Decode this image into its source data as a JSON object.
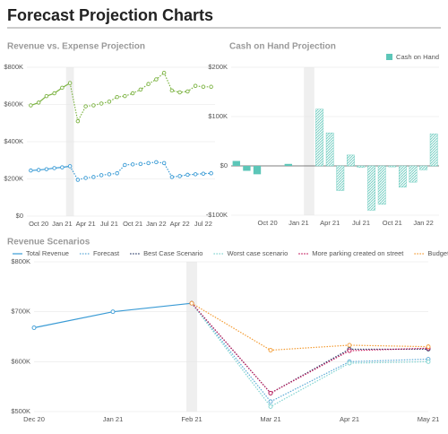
{
  "title": "Forecast Projection Charts",
  "chart_data": [
    {
      "type": "line",
      "title": "Revenue vs. Expense Projection",
      "categories": [
        null,
        "Oct 20",
        null,
        null,
        "Jan 21",
        null,
        null,
        "Apr 21",
        null,
        null,
        "Jul 21",
        null,
        null,
        "Oct 21",
        null,
        null,
        "Jan 22",
        null,
        null,
        "Apr 22",
        null,
        null,
        "Jul 22",
        null
      ],
      "series": [
        {
          "color": "#7cb342",
          "values": [
            595000,
            610000,
            645000,
            660000,
            690000,
            715000,
            510000,
            590000,
            595000,
            605000,
            615000,
            640000,
            645000,
            660000,
            680000,
            710000,
            735000,
            770000,
            675000,
            665000,
            670000,
            700000,
            695000,
            695000
          ]
        },
        {
          "color": "#3a9bd5",
          "values": [
            245000,
            248000,
            252000,
            258000,
            262000,
            268000,
            195000,
            205000,
            210000,
            220000,
            225000,
            230000,
            275000,
            278000,
            280000,
            285000,
            290000,
            285000,
            210000,
            215000,
            222000,
            225000,
            228000,
            230000
          ]
        }
      ],
      "ylim": [
        0,
        800000
      ],
      "yticks": [
        {
          "value": 0,
          "label": "$0"
        },
        {
          "value": 200000,
          "label": "$200K"
        },
        {
          "value": 400000,
          "label": "$400K"
        },
        {
          "value": 600000,
          "label": "$600K"
        },
        {
          "value": 800000,
          "label": "$800K"
        }
      ],
      "grid": true,
      "highlight_index": 5
    },
    {
      "type": "bar",
      "title": "Cash on Hand Projection",
      "categories": [
        null,
        null,
        null,
        "Oct 20",
        null,
        null,
        "Jan 21",
        null,
        null,
        "Apr 21",
        null,
        null,
        "Jul 21",
        null,
        null,
        "Oct 21",
        null,
        null,
        "Jan 22",
        null
      ],
      "series": [
        {
          "name": "Cash on Hand",
          "color": "#5cc6b8",
          "values": [
            10000,
            -10000,
            -17000,
            0,
            0,
            4000,
            0,
            null,
            115000,
            67000,
            -50000,
            22000,
            -3000,
            -90000,
            -78000,
            -2000,
            -43000,
            -33000,
            -8000,
            65000
          ]
        }
      ],
      "ylim": [
        -100000,
        200000
      ],
      "yticks": [
        {
          "value": -100000,
          "label": "-$100K"
        },
        {
          "value": 0,
          "label": "$0"
        },
        {
          "value": 100000,
          "label": "$100K"
        },
        {
          "value": 200000,
          "label": "$200K"
        }
      ],
      "grid": true,
      "highlight_index": 7,
      "legend": "top-right"
    },
    {
      "type": "line",
      "title": "Revenue Scenarios",
      "categories": [
        "Dec 20",
        "Jan 21",
        "Feb 21",
        "Mar 21",
        "Apr 21",
        "May 21"
      ],
      "series": [
        {
          "name": "Total Revenue",
          "color": "#3a9bd5",
          "values": [
            668000,
            700000,
            717000,
            null,
            null,
            null
          ]
        },
        {
          "name": "Forecast",
          "color": "#5aa9d6",
          "values": [
            null,
            null,
            717000,
            520000,
            600000,
            605000
          ]
        },
        {
          "name": "Best Case Scenario",
          "color": "#2c3e6b",
          "values": [
            null,
            null,
            717000,
            537000,
            625000,
            625000
          ]
        },
        {
          "name": "Worst case scenario",
          "color": "#7fd3d0",
          "values": [
            null,
            null,
            717000,
            510000,
            597000,
            600000
          ]
        },
        {
          "name": "More parking created on street",
          "color": "#c2185b",
          "values": [
            null,
            null,
            717000,
            537000,
            622000,
            627000
          ]
        },
        {
          "name": "Budget",
          "color": "#f39c34",
          "values": [
            null,
            null,
            717000,
            623000,
            633000,
            630000
          ]
        }
      ],
      "ylim": [
        500000,
        800000
      ],
      "yticks": [
        {
          "value": 500000,
          "label": "$500K"
        },
        {
          "value": 600000,
          "label": "$600K"
        },
        {
          "value": 700000,
          "label": "$700K"
        },
        {
          "value": 800000,
          "label": "$800K"
        }
      ],
      "grid": true,
      "highlight_index": 2,
      "legend": "top"
    }
  ]
}
